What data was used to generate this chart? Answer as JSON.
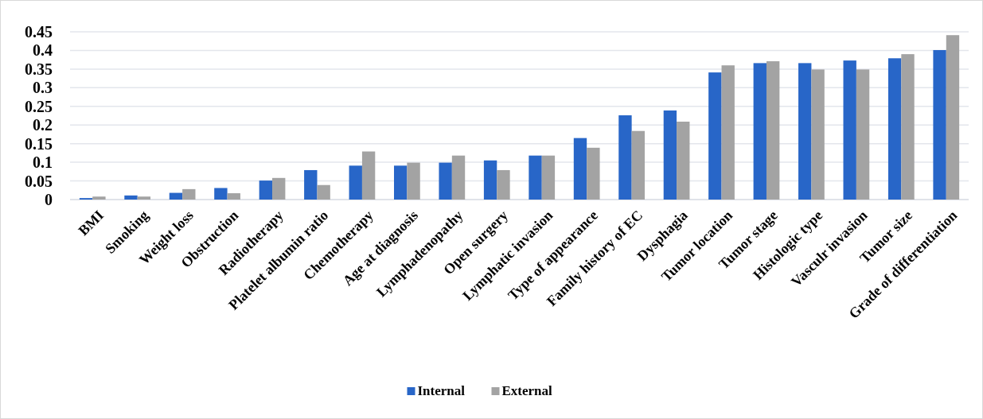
{
  "chart_data": {
    "type": "bar",
    "categories": [
      "BMI",
      "Smoking",
      "Weight loss",
      "Obstruction",
      "Radiotherapy",
      "Platelet albumin ratio",
      "Chemotherapy",
      "Age at diagnosis",
      "Lymphadenopathy",
      "Open surgery",
      "Lymphatic invasion",
      "Type of appearance",
      "Family history of EC",
      "Dysphagia",
      "Tumor location",
      "Tumor stage",
      "Histologic type",
      "Vasculr invasion",
      "Tumor size",
      "Grade of differentiation"
    ],
    "series": [
      {
        "name": "Internal",
        "color": "#2866c8",
        "values": [
          0.004,
          0.011,
          0.018,
          0.031,
          0.051,
          0.079,
          0.091,
          0.091,
          0.099,
          0.105,
          0.118,
          0.165,
          0.226,
          0.239,
          0.341,
          0.366,
          0.366,
          0.373,
          0.379,
          0.401
        ]
      },
      {
        "name": "External",
        "color": "#a3a3a3",
        "values": [
          0.008,
          0.008,
          0.028,
          0.017,
          0.058,
          0.039,
          0.129,
          0.099,
          0.118,
          0.079,
          0.118,
          0.139,
          0.184,
          0.209,
          0.36,
          0.371,
          0.349,
          0.349,
          0.39,
          0.441
        ]
      }
    ],
    "ylim": [
      0,
      0.45
    ],
    "yticks": [
      0,
      0.05,
      0.1,
      0.15,
      0.2,
      0.25,
      0.3,
      0.35,
      0.4,
      0.45
    ],
    "grid": "y",
    "legend": "bottom"
  }
}
